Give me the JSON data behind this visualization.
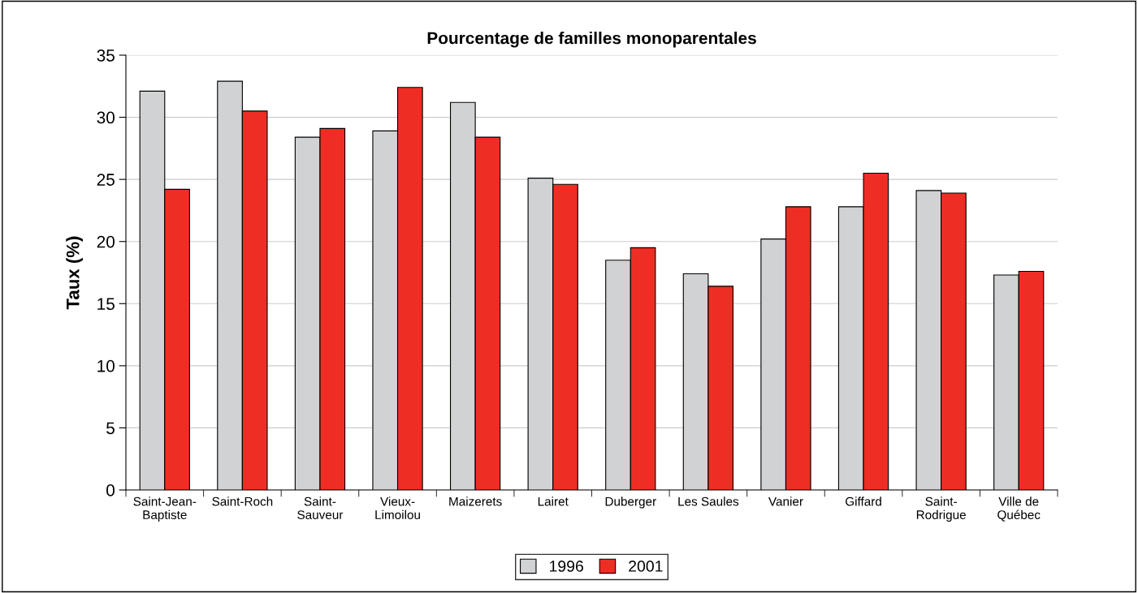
{
  "chart_data": {
    "type": "bar",
    "title": "Pourcentage de familles monoparentales",
    "ylabel": "Taux (%)",
    "categories": [
      "Saint-Jean-\nBaptiste",
      "Saint-Roch",
      "Saint-\nSauveur",
      "Vieux-\nLimoilou",
      "Maizerets",
      "Lairet",
      "Duberger",
      "Les Saules",
      "Vanier",
      "Giffard",
      "Saint-\nRodrigue",
      "Ville de\nQuébec"
    ],
    "series": [
      {
        "name": "1996",
        "color": "#d1d2d4",
        "values": [
          32.1,
          32.9,
          28.4,
          28.9,
          31.2,
          25.1,
          18.5,
          17.4,
          20.2,
          22.8,
          24.1,
          17.3
        ]
      },
      {
        "name": "2001",
        "color": "#ee2e24",
        "values": [
          24.2,
          30.5,
          29.1,
          32.4,
          28.4,
          24.6,
          19.5,
          16.4,
          22.8,
          25.5,
          23.9,
          17.6
        ]
      }
    ],
    "ylim": [
      0,
      35
    ],
    "yticks": [
      0,
      5,
      10,
      15,
      20,
      25,
      30,
      35
    ],
    "grid": "y",
    "legend": "bottom"
  }
}
